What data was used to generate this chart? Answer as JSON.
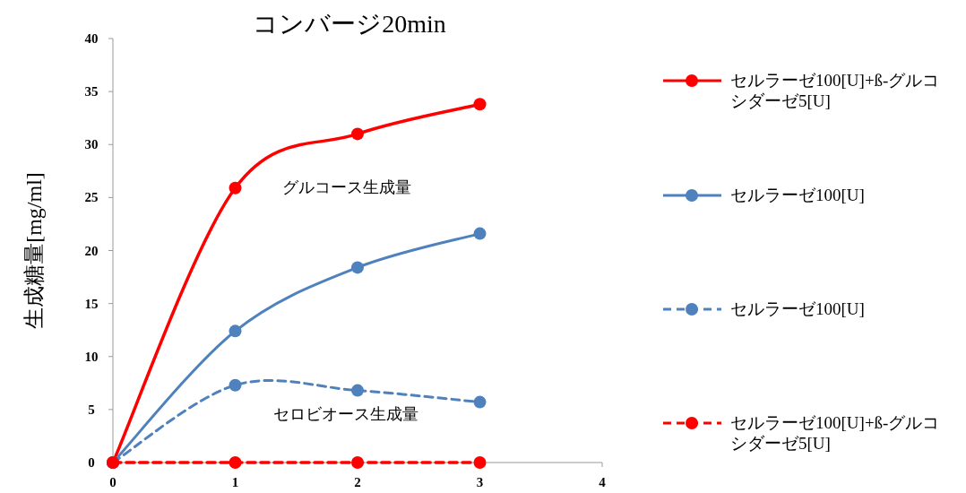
{
  "chart_data": {
    "type": "line",
    "title": "コンバージ20min",
    "ylabel": "生成糖量[mg/ml]",
    "x": [
      0,
      1,
      2,
      3
    ],
    "xlim": [
      0,
      4
    ],
    "xticks": [
      0,
      1,
      2,
      3,
      4
    ],
    "ylim": [
      0,
      40
    ],
    "yticks": [
      0,
      5,
      10,
      15,
      20,
      25,
      30,
      35,
      40
    ],
    "grid": false,
    "legend": "right",
    "marker": "circle",
    "series": [
      {
        "name": "セルラーゼ100[U]+ß-グルコシダーゼ5[U]",
        "color": "#ff0000",
        "values": [
          0,
          25.9,
          31,
          33.8
        ],
        "line_style": "solid"
      },
      {
        "name": "セルラーゼ100[U]",
        "color": "#4f81bd",
        "values": [
          0,
          12.4,
          18.4,
          21.6
        ],
        "line_style": "solid"
      },
      {
        "name": "セルラーゼ100[U]",
        "color": "#4f81bd",
        "values": [
          0,
          7.3,
          6.8,
          5.7
        ],
        "line_style": "dashed"
      },
      {
        "name": "セルラーゼ100[U]+ß-グルコシダーゼ5[U]",
        "color": "#ff0000",
        "values": [
          0,
          0,
          0,
          0
        ],
        "line_style": "dashed"
      }
    ],
    "annotations": [
      "グルコース生成量",
      "セロビオース生成量"
    ]
  }
}
